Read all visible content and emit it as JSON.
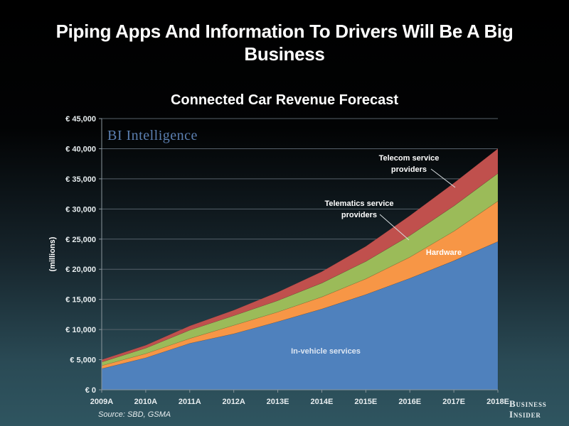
{
  "header": {
    "title": "Piping Apps And Information To Drivers Will Be A Big Business",
    "title_line1": "Piping Apps And Information To Drivers Will Be A Big",
    "title_line2": "Business"
  },
  "footer": {
    "source": "Source: SBD, GSMA",
    "logo_line1": "Business",
    "logo_line2": "Insider"
  },
  "watermark": "BI Intelligence",
  "colors": {
    "in_vehicle": "#4f81bd",
    "hardware": "#f79646",
    "telematics": "#9bbb59",
    "telecom": "#c0504d"
  },
  "chart_data": {
    "type": "area",
    "stacked": true,
    "title": "Connected Car Revenue Forecast",
    "xlabel": "",
    "ylabel": "(millions)",
    "y_unit": "€",
    "ylim": [
      0,
      45000
    ],
    "yticks": [
      0,
      5000,
      10000,
      15000,
      20000,
      25000,
      30000,
      35000,
      40000,
      45000
    ],
    "ytick_labels": [
      "€ 0",
      "€ 5,000",
      "€ 10,000",
      "€ 15,000",
      "€ 20,000",
      "€ 25,000",
      "€ 30,000",
      "€ 35,000",
      "€ 40,000",
      "€ 45,000"
    ],
    "grid": true,
    "categories": [
      "2009A",
      "2010A",
      "2011A",
      "2012A",
      "2013E",
      "2014E",
      "2015E",
      "2016E",
      "2017E",
      "2018E"
    ],
    "series": [
      {
        "name": "In-vehicle services",
        "color": "#4f81bd",
        "values": [
          3500,
          5300,
          7700,
          9300,
          11300,
          13400,
          15800,
          18500,
          21400,
          24600
        ]
      },
      {
        "name": "Hardware",
        "color": "#f79646",
        "values": [
          500,
          700,
          800,
          1400,
          1600,
          2000,
          2600,
          3500,
          4900,
          6700
        ]
      },
      {
        "name": "Telematics service providers",
        "color": "#9bbb59",
        "values": [
          600,
          900,
          1400,
          1600,
          1900,
          2300,
          2900,
          3600,
          4200,
          4600
        ]
      },
      {
        "name": "Telecom service providers",
        "color": "#c0504d",
        "values": [
          400,
          500,
          700,
          900,
          1400,
          1900,
          2500,
          3300,
          3800,
          4100
        ]
      }
    ],
    "annotations": [
      {
        "text_lines": [
          "Telecom service",
          "providers"
        ],
        "series": "Telecom service providers"
      },
      {
        "text_lines": [
          "Telematics service",
          "providers"
        ],
        "series": "Telematics service providers"
      },
      {
        "text_lines": [
          "Hardware"
        ],
        "series": "Hardware"
      },
      {
        "text_lines": [
          "In-vehicle services"
        ],
        "series": "In-vehicle services"
      }
    ]
  }
}
